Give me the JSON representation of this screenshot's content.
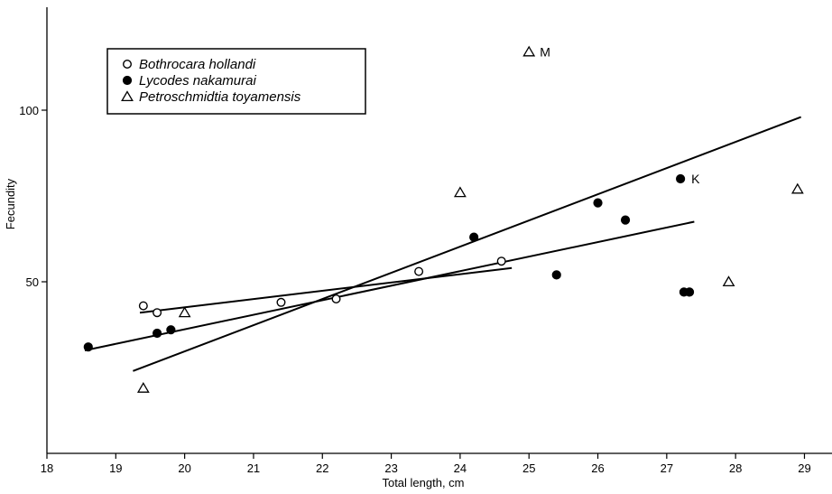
{
  "chart_data": {
    "type": "scatter",
    "title": "",
    "xlabel": "Total length, cm",
    "ylabel": "Fecundity",
    "xlim": [
      18,
      29.4
    ],
    "ylim": [
      0,
      130
    ],
    "x_ticks": [
      18,
      19,
      20,
      21,
      22,
      23,
      24,
      25,
      26,
      27,
      28,
      29
    ],
    "y_ticks": [
      50,
      100
    ],
    "grid": false,
    "legend_position": "top-left",
    "series": [
      {
        "name": "Bothrocara hollandi",
        "marker": "open-circle",
        "points": [
          [
            19.4,
            43
          ],
          [
            19.6,
            41
          ],
          [
            21.4,
            44
          ],
          [
            22.2,
            45
          ],
          [
            23.4,
            53
          ],
          [
            24.6,
            56
          ]
        ]
      },
      {
        "name": "Lycodes nakamurai",
        "marker": "filled-circle",
        "points": [
          [
            18.6,
            31
          ],
          [
            19.6,
            35
          ],
          [
            19.8,
            36
          ],
          [
            24.2,
            63
          ],
          [
            25.4,
            52
          ],
          [
            26.0,
            73
          ],
          [
            26.4,
            68
          ],
          [
            27.2,
            80
          ],
          [
            27.25,
            47
          ],
          [
            27.33,
            47
          ]
        ]
      },
      {
        "name": "Petroschmidtia toyamensis",
        "marker": "open-triangle",
        "points": [
          [
            19.4,
            19
          ],
          [
            20.0,
            41
          ],
          [
            24.0,
            76
          ],
          [
            25.0,
            117
          ],
          [
            27.9,
            50
          ],
          [
            28.9,
            77
          ]
        ]
      }
    ],
    "lines": [
      {
        "from": [
          18.55,
          30
        ],
        "to": [
          27.4,
          67.5
        ]
      },
      {
        "from": [
          19.25,
          24
        ],
        "to": [
          28.95,
          98
        ]
      },
      {
        "from": [
          19.35,
          41
        ],
        "to": [
          24.75,
          54
        ]
      }
    ],
    "annotations": [
      {
        "text": "M",
        "at": [
          25.0,
          117
        ]
      },
      {
        "text": "K",
        "at": [
          27.2,
          80
        ]
      }
    ]
  }
}
